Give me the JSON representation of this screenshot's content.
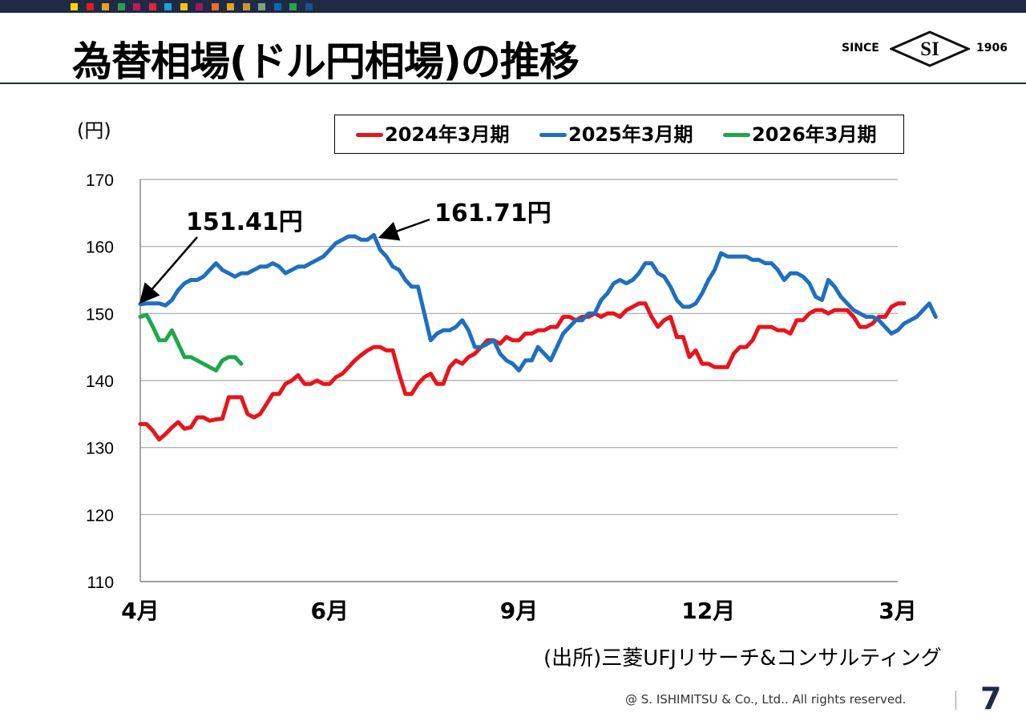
{
  "header": {
    "title": "為替相場(ドル円相場)の推移",
    "logo": {
      "since": "SINCE",
      "mark": "SI",
      "year": "1906"
    },
    "color_squares": [
      "#ffd700",
      "#e31b23",
      "#e8a11e",
      "#2e9e49",
      "#c2185b",
      "#e5243b",
      "#1e9fd7",
      "#fbc412",
      "#a3185c",
      "#f06b25",
      "#e8a11e",
      "#c59a2b",
      "#7fa37f",
      "#0a69b3",
      "#2ba34a",
      "#1b4f91"
    ]
  },
  "chart_data": {
    "type": "line",
    "y_unit_label": "(円)",
    "ylim": [
      110,
      170
    ],
    "yticks": [
      "170",
      "160",
      "150",
      "140",
      "130",
      "120",
      "110"
    ],
    "x_ticks": [
      "4月",
      "6月",
      "9月",
      "12月",
      "3月"
    ],
    "grid": true,
    "legend_position": "top",
    "series": [
      {
        "name": "2024年3月期",
        "color": "#e8141b",
        "values": [
          133.5,
          133.5,
          132.5,
          131.2,
          132.0,
          133.0,
          133.8,
          132.8,
          133.0,
          134.5,
          134.5,
          134.0,
          134.2,
          134.3,
          137.5,
          137.5,
          137.5,
          135.0,
          134.5,
          135.0,
          136.5,
          138.0,
          138.0,
          139.5,
          140.0,
          140.8,
          139.5,
          139.5,
          140.0,
          139.5,
          139.5,
          140.5,
          141.0,
          142.0,
          143.0,
          143.8,
          144.5,
          145.0,
          145.0,
          144.5,
          144.5,
          141.0,
          138.0,
          138.0,
          139.5,
          140.5,
          141.0,
          139.5,
          139.5,
          142.0,
          143.0,
          142.5,
          143.5,
          144.0,
          145.0,
          146.0,
          146.0,
          145.5,
          146.5,
          146.0,
          146.0,
          147.0,
          147.0,
          147.5,
          147.5,
          148.0,
          148.0,
          149.5,
          149.5,
          149.0,
          149.5,
          149.5,
          150.0,
          149.5,
          150.0,
          150.0,
          149.5,
          150.5,
          151.0,
          151.5,
          151.5,
          149.5,
          148.0,
          149.0,
          149.5,
          146.5,
          146.5,
          143.5,
          144.5,
          142.5,
          142.5,
          142.0,
          142.0,
          142.0,
          144.0,
          145.0,
          145.0,
          146.0,
          148.0,
          148.0,
          148.0,
          147.5,
          147.5,
          147.0,
          149.0,
          149.0,
          150.0,
          150.5,
          150.5,
          150.0,
          150.5,
          150.5,
          150.5,
          149.5,
          148.0,
          148.0,
          148.5,
          149.5,
          149.5,
          151.0,
          151.5,
          151.5
        ]
      },
      {
        "name": "2025年3月期",
        "color": "#1f6fbf",
        "values": [
          151.4,
          151.5,
          151.5,
          151.5,
          151.2,
          152.0,
          153.5,
          154.5,
          155.0,
          155.0,
          155.5,
          156.5,
          157.5,
          156.5,
          156.0,
          155.5,
          156.0,
          156.0,
          156.5,
          157.0,
          157.0,
          157.5,
          157.0,
          156.0,
          156.5,
          157.0,
          157.0,
          157.5,
          158.0,
          158.5,
          159.5,
          160.5,
          161.0,
          161.5,
          161.5,
          161.0,
          161.0,
          161.71,
          159.5,
          158.5,
          157.0,
          156.5,
          155.0,
          154.0,
          154.0,
          150.0,
          146.0,
          147.0,
          147.5,
          147.5,
          148.0,
          149.0,
          147.5,
          145.0,
          145.0,
          145.5,
          146.0,
          144.0,
          143.0,
          142.5,
          141.5,
          143.0,
          143.0,
          145.0,
          144.0,
          143.0,
          145.0,
          147.0,
          148.0,
          149.0,
          149.0,
          150.0,
          150.0,
          152.0,
          153.0,
          154.5,
          155.0,
          154.5,
          155.0,
          156.0,
          157.5,
          157.5,
          156.0,
          155.5,
          154.0,
          152.0,
          151.0,
          151.0,
          151.5,
          153.0,
          155.0,
          156.5,
          159.0,
          158.5,
          158.5,
          158.5,
          158.5,
          158.0,
          158.0,
          157.5,
          157.5,
          156.5,
          155.0,
          156.0,
          156.0,
          155.5,
          154.5,
          152.5,
          152.0,
          155.0,
          154.0,
          152.5,
          151.5,
          150.5,
          150.0,
          149.5,
          149.5,
          149.0,
          148.0,
          147.0,
          147.5,
          148.5,
          149.0,
          149.5,
          150.5,
          151.5,
          149.5
        ]
      },
      {
        "name": "2026年3月期",
        "color": "#1ea84a",
        "values": [
          149.5,
          149.8,
          148.0,
          146.0,
          146.0,
          147.5,
          145.5,
          143.5,
          143.5,
          143.0,
          142.5,
          142.0,
          141.5,
          143.0,
          143.5,
          143.5,
          142.5
        ]
      }
    ],
    "annotations": [
      {
        "text": "151.41円",
        "value": 151.41
      },
      {
        "text": "161.71円",
        "value": 161.71
      }
    ]
  },
  "footer": {
    "source": "(出所)三菱UFJリサーチ&コンサルティング",
    "copyright": "@ S. ISHIMITSU & Co., Ltd.. All rights reserved.",
    "page_number": "7"
  }
}
